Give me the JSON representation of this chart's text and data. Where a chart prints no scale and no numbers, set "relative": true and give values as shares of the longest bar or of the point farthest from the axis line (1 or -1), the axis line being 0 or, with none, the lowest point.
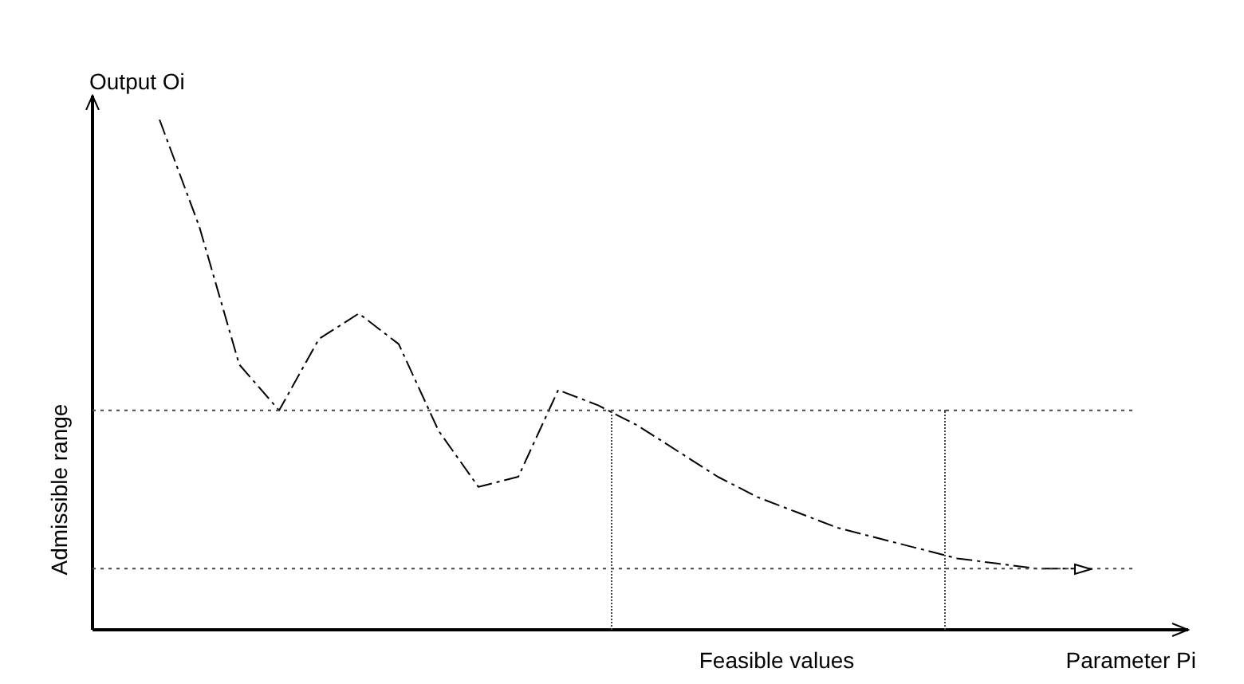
{
  "chart_data": {
    "type": "line",
    "relative": true,
    "xlabel": "Parameter Pi",
    "ylabel": "Output Oi",
    "categories": [
      null,
      null,
      null,
      null,
      null,
      null,
      null,
      null,
      null,
      null,
      null,
      null,
      null,
      null,
      null,
      null,
      null,
      null,
      null,
      null,
      null,
      null,
      null,
      null
    ],
    "series": [
      {
        "color": "#000000",
        "values": [
          1.0,
          0.79,
          0.52,
          0.43,
          0.57,
          0.62,
          0.56,
          0.39,
          0.28,
          0.3,
          0.47,
          0.44,
          0.4,
          0.35,
          0.3,
          0.26,
          0.23,
          0.2,
          0.18,
          0.16,
          0.14,
          0.13,
          0.12,
          0.12
        ]
      }
    ],
    "ref_lines": [
      {
        "axis": "y",
        "value": 0.43,
        "color": "#444444",
        "line_style": "dotted"
      },
      {
        "axis": "y",
        "value": 0.12,
        "color": "#444444",
        "line_style": "dotted"
      }
    ],
    "annotations": [
      "Admissible range",
      "Feasible values"
    ],
    "line_style": "dashed",
    "marker": "none",
    "legend": false,
    "tick_labels": false
  }
}
